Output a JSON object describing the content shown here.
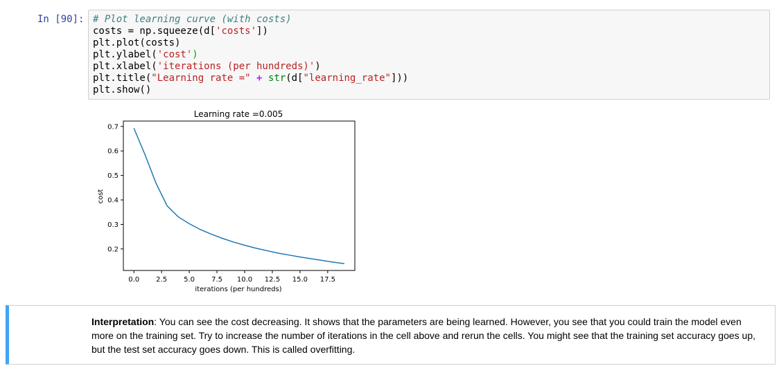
{
  "cell": {
    "prompt": "In [90]:",
    "code_lines": [
      [
        {
          "t": "# Plot learning curve (with costs)",
          "c": "comment"
        }
      ],
      [
        {
          "t": "costs = np.squeeze(d[",
          "c": "plain"
        },
        {
          "t": "'costs'",
          "c": "str"
        },
        {
          "t": "])",
          "c": "plain"
        }
      ],
      [
        {
          "t": "plt.plot(costs)",
          "c": "plain"
        }
      ],
      [
        {
          "t": "plt.ylabel(",
          "c": "plain"
        },
        {
          "t": "'cost'",
          "c": "str"
        },
        {
          "t": ")",
          "c": "paren-g"
        }
      ],
      [
        {
          "t": "plt.xlabel(",
          "c": "plain"
        },
        {
          "t": "'iterations (per hundreds)'",
          "c": "str"
        },
        {
          "t": ")",
          "c": "plain"
        }
      ],
      [
        {
          "t": "plt.title(",
          "c": "plain"
        },
        {
          "t": "\"Learning rate =\"",
          "c": "str"
        },
        {
          "t": " ",
          "c": "plain"
        },
        {
          "t": "+",
          "c": "op"
        },
        {
          "t": " ",
          "c": "plain"
        },
        {
          "t": "str",
          "c": "builtin"
        },
        {
          "t": "(d[",
          "c": "plain"
        },
        {
          "t": "\"learning_rate\"",
          "c": "str"
        },
        {
          "t": "]))",
          "c": "plain"
        }
      ],
      [
        {
          "t": "plt.show()",
          "c": "plain"
        }
      ]
    ]
  },
  "chart_data": {
    "type": "line",
    "title": "Learning rate =0.005",
    "xlabel": "iterations (per hundreds)",
    "ylabel": "cost",
    "x": [
      0,
      1,
      2,
      3,
      4,
      5,
      6,
      7,
      8,
      9,
      10,
      11,
      12,
      13,
      14,
      15,
      16,
      17,
      18,
      19
    ],
    "y": [
      0.693,
      0.585,
      0.468,
      0.376,
      0.331,
      0.303,
      0.279,
      0.26,
      0.243,
      0.228,
      0.215,
      0.203,
      0.193,
      0.183,
      0.175,
      0.167,
      0.16,
      0.153,
      0.146,
      0.14
    ],
    "xlim": [
      -0.95,
      19.95
    ],
    "ylim": [
      0.112,
      0.722
    ],
    "xticks": [
      "0.0",
      "2.5",
      "5.0",
      "7.5",
      "10.0",
      "12.5",
      "15.0",
      "17.5"
    ],
    "xtick_values": [
      0,
      2.5,
      5,
      7.5,
      10,
      12.5,
      15,
      17.5
    ],
    "yticks": [
      "0.2",
      "0.3",
      "0.4",
      "0.5",
      "0.6",
      "0.7"
    ],
    "ytick_values": [
      0.2,
      0.3,
      0.4,
      0.5,
      0.6,
      0.7
    ],
    "line_color": "#1f77b4",
    "grid": false
  },
  "markdown": {
    "bold": "Interpretation",
    "text": ": You can see the cost decreasing. It shows that the parameters are being learned. However, you see that you could train the model even more on the training set. Try to increase the number of iterations in the cell above and rerun the cells. You might see that the training set accuracy goes up, but the test set accuracy goes down. This is called overfitting."
  },
  "colors": {
    "prompt": "#303f9f",
    "selected_cell_border": "#42a5f5"
  }
}
